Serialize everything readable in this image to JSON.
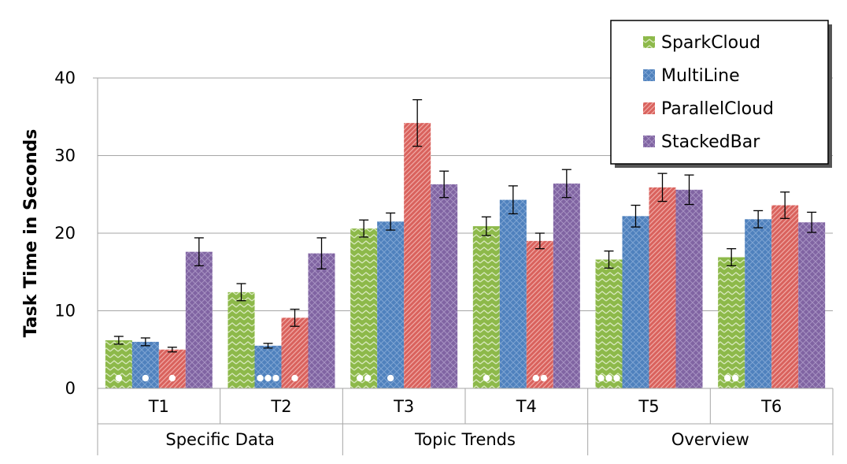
{
  "chart_data": {
    "type": "bar",
    "ylabel": "Task Time in Seconds",
    "xlabel": "",
    "ylim": [
      0,
      40
    ],
    "yticks": [
      0,
      10,
      20,
      30,
      40
    ],
    "grid": "horizontal",
    "legend_position": "top-right",
    "categories": [
      "T1",
      "T2",
      "T3",
      "T4",
      "T5",
      "T6"
    ],
    "groups": [
      {
        "label": "Specific Data",
        "categories": [
          "T1",
          "T2"
        ]
      },
      {
        "label": "Topic Trends",
        "categories": [
          "T3",
          "T4"
        ]
      },
      {
        "label": "Overview",
        "categories": [
          "T5",
          "T6"
        ]
      }
    ],
    "series": [
      {
        "name": "SparkCloud",
        "color": "#8db94a",
        "pattern": "zigzag",
        "values": [
          6.2,
          12.4,
          20.6,
          20.9,
          16.6,
          16.9
        ],
        "errors": [
          0.5,
          1.1,
          1.1,
          1.2,
          1.1,
          1.1
        ],
        "significance_dots": [
          1,
          0,
          2,
          1,
          3,
          2
        ]
      },
      {
        "name": "MultiLine",
        "color": "#4f81bd",
        "pattern": "crosshatch",
        "values": [
          6.0,
          5.5,
          21.5,
          24.3,
          22.2,
          21.8
        ],
        "errors": [
          0.5,
          0.3,
          1.1,
          1.8,
          1.4,
          1.1
        ],
        "significance_dots": [
          1,
          3,
          1,
          0,
          0,
          0
        ]
      },
      {
        "name": "ParallelCloud",
        "color": "#d9625d",
        "pattern": "diagonal",
        "values": [
          5.0,
          9.1,
          34.2,
          19.0,
          25.9,
          23.6
        ],
        "errors": [
          0.3,
          1.1,
          3.0,
          1.0,
          1.8,
          1.7
        ],
        "significance_dots": [
          1,
          1,
          0,
          2,
          0,
          0
        ]
      },
      {
        "name": "StackedBar",
        "color": "#8064a2",
        "pattern": "crosshatch",
        "values": [
          17.6,
          17.4,
          26.3,
          26.4,
          25.6,
          21.4
        ],
        "errors": [
          1.8,
          2.0,
          1.7,
          1.8,
          1.9,
          1.3
        ],
        "significance_dots": [
          0,
          0,
          0,
          0,
          0,
          0
        ]
      }
    ]
  }
}
